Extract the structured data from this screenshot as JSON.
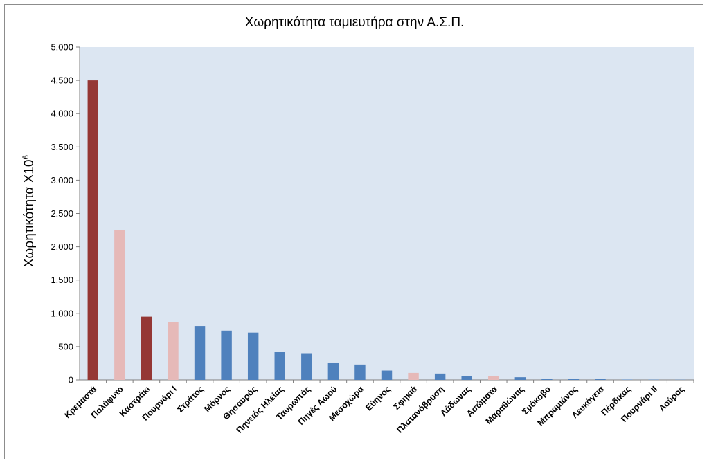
{
  "chart_data": {
    "type": "bar",
    "title": "Χωρητικότητα ταμιευτήρα στην Α.Σ.Π.",
    "ylabel": "Χωρητικότητα X10",
    "ylabel_superscript": "6",
    "xlabel": "",
    "ylim": [
      0,
      5000
    ],
    "yticks": [
      0,
      500,
      1000,
      1500,
      2000,
      2500,
      3000,
      3500,
      4000,
      4500,
      5000
    ],
    "ytick_labels": [
      "0",
      "500",
      "1.000",
      "1.500",
      "2.000",
      "2.500",
      "3.000",
      "3.500",
      "4.000",
      "4.500",
      "5.000"
    ],
    "grid": false,
    "categories": [
      "Κρεμαστά",
      "Πολύφυτο",
      "Καστράκι",
      "Πουρνάρι Ι",
      "Στράτος",
      "Μόρνος",
      "Θησαυρός",
      "Πηνειός Ηλείας",
      "Ταυρωπός",
      "Πηγές Αωού",
      "Μεσοχώρα",
      "Εύηνος",
      "Σφηκιά",
      "Πλατανόβρυση",
      "Λάδωνας",
      "Ασώματα",
      "Μαραθώνας",
      "Σμόκοβο",
      "Μπραμιάνος",
      "Λευκόγεια",
      "Πέρδικας",
      "Πουρνάρι ΙΙ",
      "Λούρος"
    ],
    "values": [
      4500,
      2250,
      950,
      870,
      810,
      740,
      710,
      420,
      400,
      260,
      230,
      140,
      105,
      95,
      60,
      55,
      40,
      20,
      15,
      12,
      5,
      4,
      3
    ],
    "bar_colors": [
      "#953735",
      "#e6b9b8",
      "#953735",
      "#e6b9b8",
      "#4f81bd",
      "#4f81bd",
      "#4f81bd",
      "#4f81bd",
      "#4f81bd",
      "#4f81bd",
      "#4f81bd",
      "#4f81bd",
      "#e6b9b8",
      "#4f81bd",
      "#4f81bd",
      "#e6b9b8",
      "#4f81bd",
      "#4f81bd",
      "#4f81bd",
      "#4f81bd",
      "#4f81bd",
      "#4f81bd",
      "#4f81bd"
    ],
    "plot_background": "#dce6f2"
  }
}
